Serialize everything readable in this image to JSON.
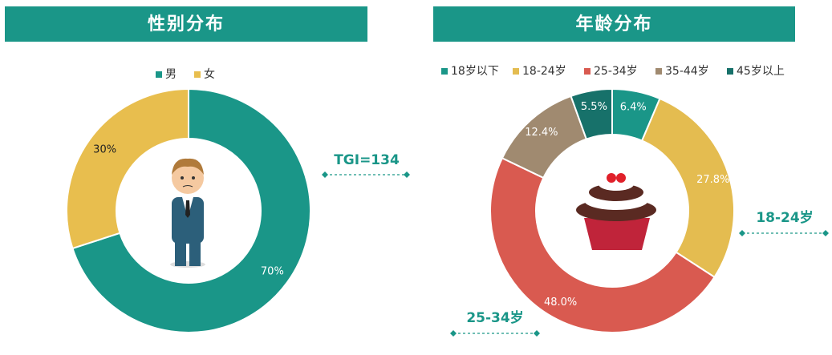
{
  "chart_data": [
    {
      "type": "pie",
      "title": "性别分布",
      "categories": [
        "男",
        "女"
      ],
      "values": [
        70,
        30
      ],
      "value_labels": [
        "70%",
        "30%"
      ],
      "colors": [
        "#1a9688",
        "#e8be4e"
      ],
      "annotations": [
        "TGI=134"
      ]
    },
    {
      "type": "pie",
      "title": "年龄分布",
      "categories": [
        "18岁以下",
        "18-24岁",
        "25-34岁",
        "35-44岁",
        "45岁以上"
      ],
      "values": [
        6.4,
        27.8,
        48.0,
        12.4,
        5.5
      ],
      "value_labels": [
        "6.4%",
        "27.8%",
        "48.0%",
        "12.4%",
        "5.5%"
      ],
      "colors": [
        "#1a9688",
        "#e4bc50",
        "#d95a50",
        "#a08a70",
        "#17716a"
      ],
      "annotations": [
        "18-24岁",
        "25-34岁"
      ]
    }
  ]
}
